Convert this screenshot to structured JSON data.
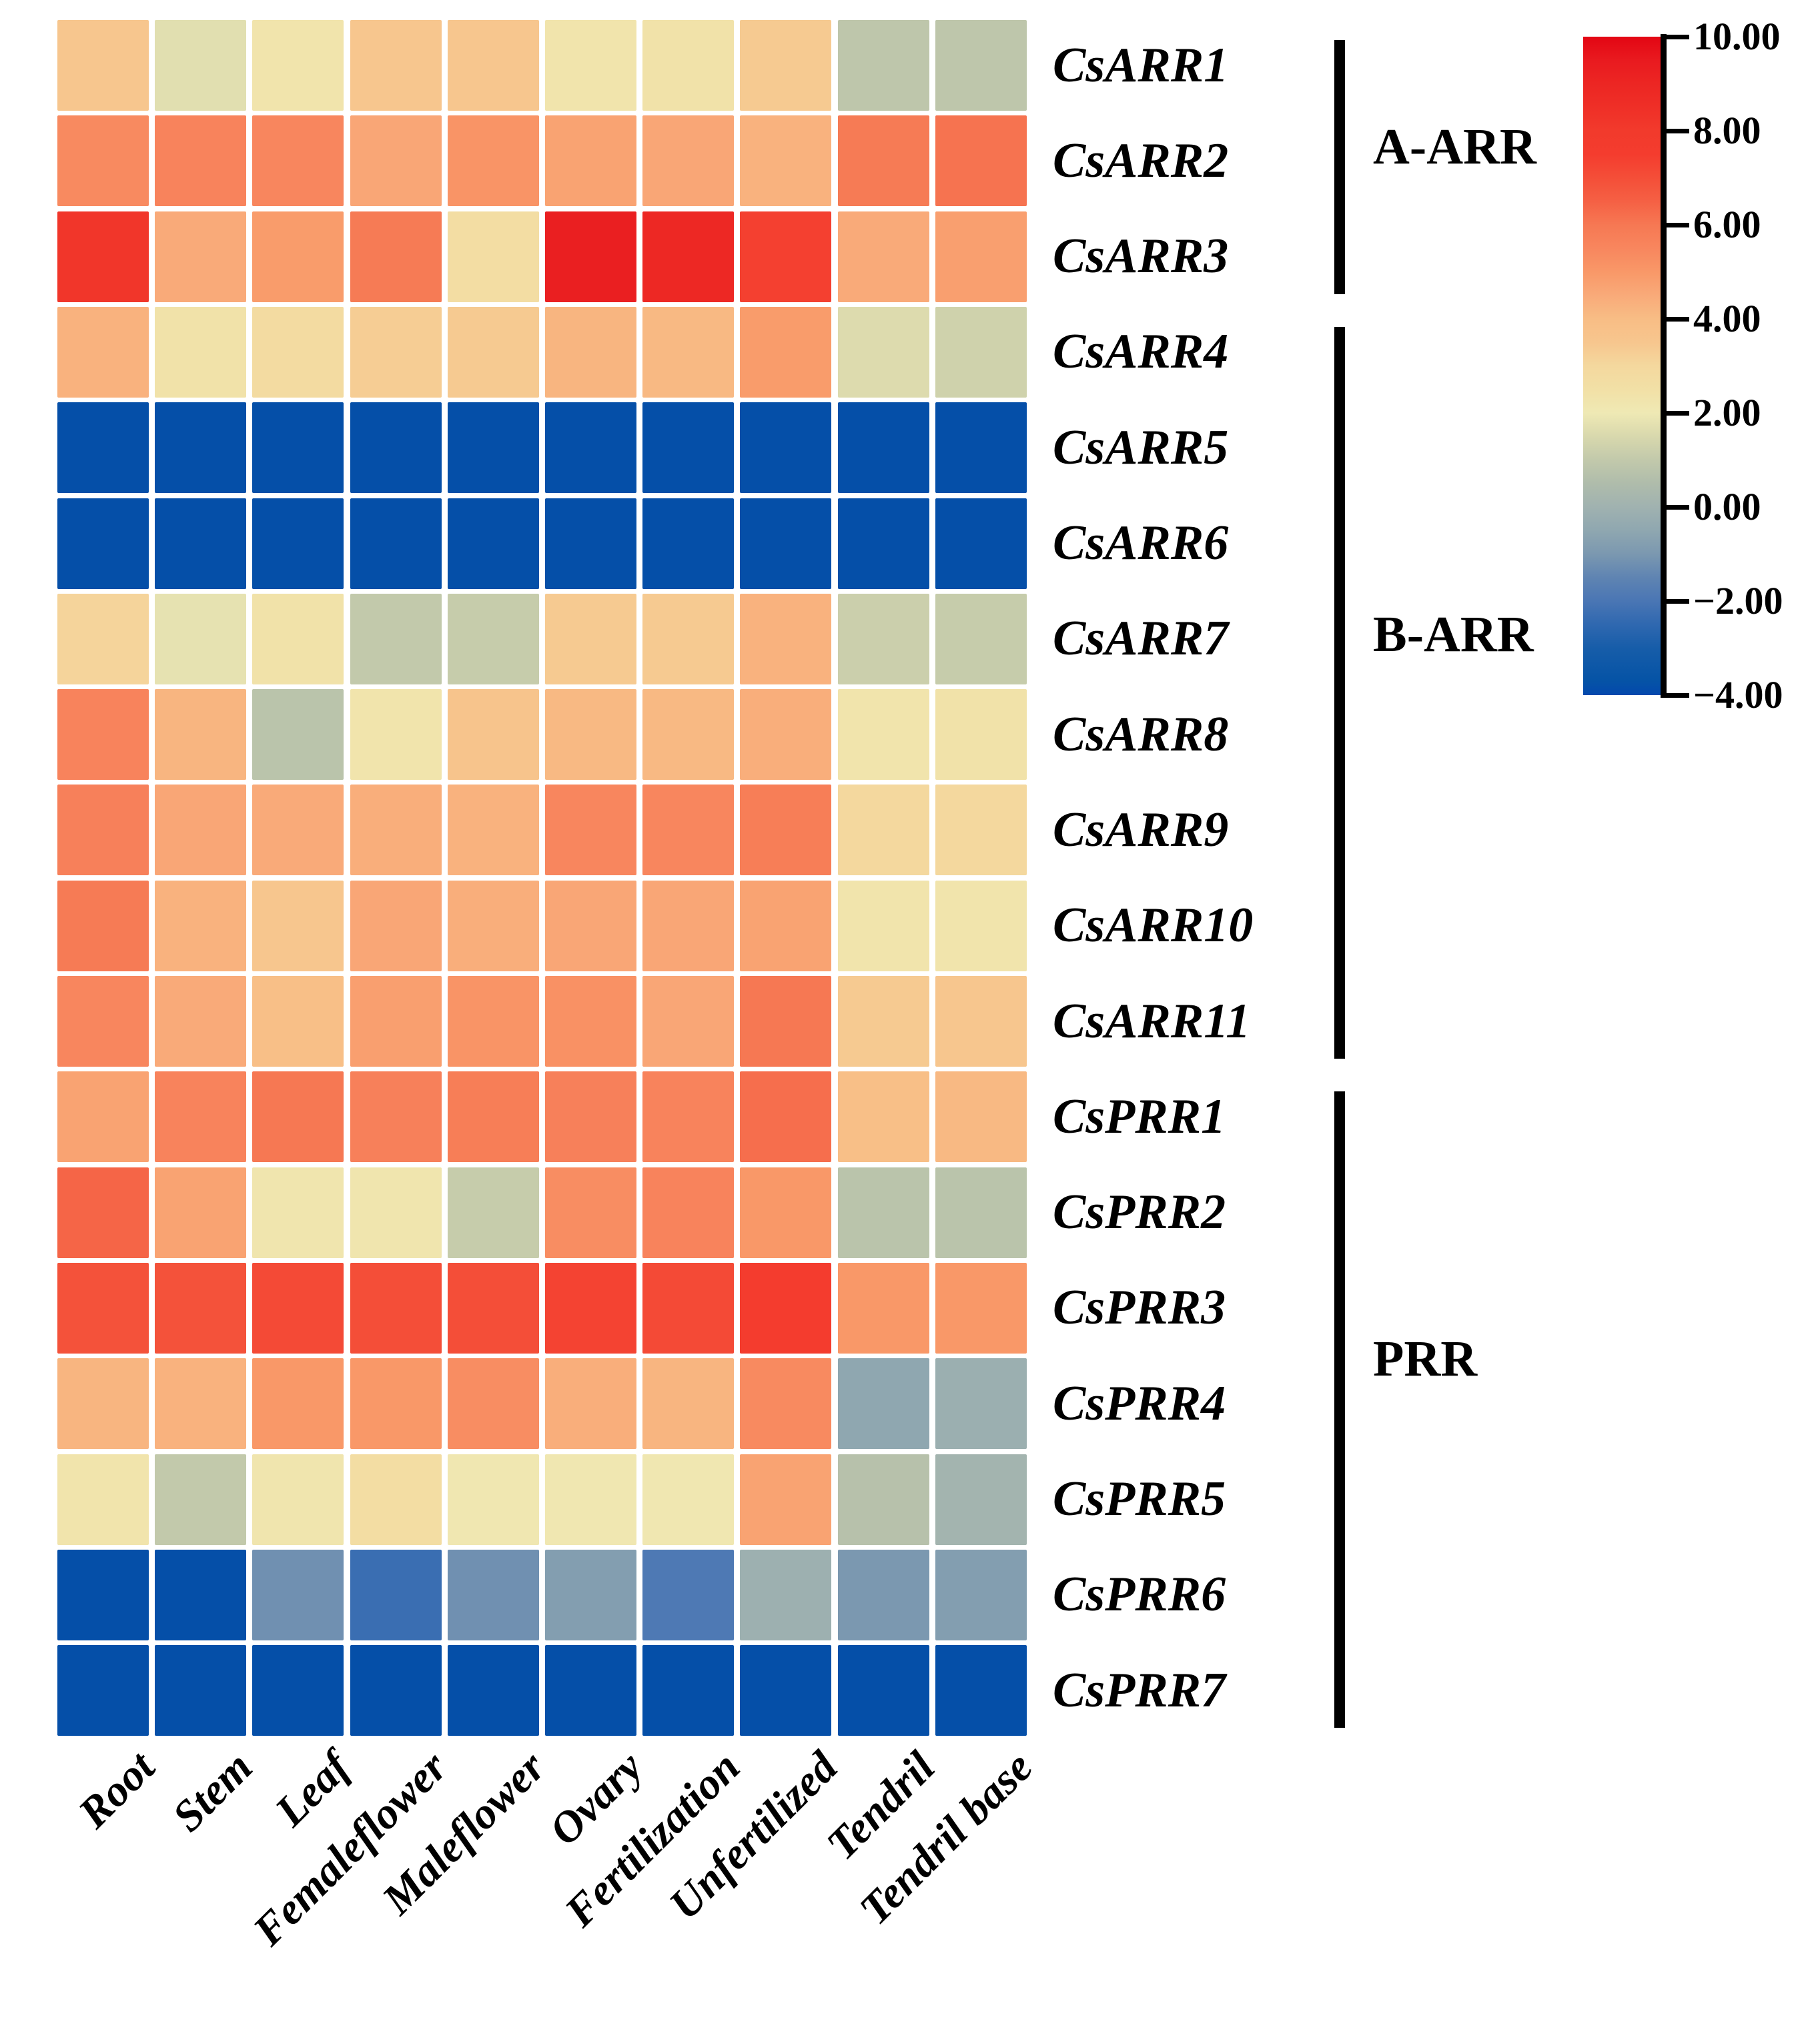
{
  "figure": {
    "background": "#ffffff",
    "description": "Expression heatmap of cucumber ARR and PRR genes across tissues"
  },
  "chart_data": {
    "type": "heatmap",
    "title": "",
    "xlabel": "",
    "ylabel": "",
    "grid": "white-gaps",
    "legend_position": "right",
    "categories": [
      "Root",
      "Stem",
      "Leaf",
      "Femaleflower",
      "Maleflower",
      "Ovary",
      "Fertilization",
      "Unfertilized",
      "Tendril",
      "Tendril base"
    ],
    "series": [
      {
        "name": "CsARR1",
        "group": "A-ARR",
        "values": [
          3.5,
          1.7,
          2.3,
          3.5,
          3.5,
          2.3,
          2.4,
          3.4,
          0.9,
          0.9
        ]
      },
      {
        "name": "CsARR2",
        "group": "A-ARR",
        "values": [
          5.4,
          5.6,
          5.5,
          4.6,
          5.1,
          4.7,
          4.6,
          4.3,
          5.9,
          6.1
        ]
      },
      {
        "name": "CsARR3",
        "group": "A-ARR",
        "values": [
          8.2,
          4.5,
          4.9,
          5.9,
          2.7,
          9.3,
          8.9,
          7.4,
          4.5,
          4.8
        ]
      },
      {
        "name": "CsARR4",
        "group": "B-ARR",
        "values": [
          4.3,
          2.4,
          2.8,
          3.3,
          3.4,
          4.2,
          4.1,
          4.9,
          1.6,
          1.3
        ]
      },
      {
        "name": "CsARR5",
        "group": "B-ARR",
        "values": [
          -3.8,
          -3.8,
          -3.8,
          -3.8,
          -3.8,
          -3.8,
          -3.8,
          -3.8,
          -3.8,
          -3.8
        ]
      },
      {
        "name": "CsARR6",
        "group": "B-ARR",
        "values": [
          -3.8,
          -3.8,
          -3.8,
          -3.8,
          -3.8,
          -3.8,
          -3.8,
          -3.8,
          -3.8,
          -3.8
        ]
      },
      {
        "name": "CsARR7",
        "group": "B-ARR",
        "values": [
          3.1,
          1.8,
          2.4,
          1.0,
          1.1,
          3.4,
          3.4,
          4.3,
          1.2,
          1.1
        ]
      },
      {
        "name": "CsARR8",
        "group": "B-ARR",
        "values": [
          5.6,
          4.2,
          0.8,
          2.3,
          3.6,
          4.1,
          4.1,
          4.4,
          2.3,
          2.4
        ]
      },
      {
        "name": "CsARR9",
        "group": "B-ARR",
        "values": [
          5.7,
          4.6,
          4.5,
          4.4,
          4.3,
          5.5,
          5.5,
          5.8,
          3.0,
          3.0
        ]
      },
      {
        "name": "CsARR10",
        "group": "B-ARR",
        "values": [
          5.9,
          4.3,
          3.5,
          4.6,
          4.4,
          4.6,
          4.6,
          4.7,
          2.3,
          2.3
        ]
      },
      {
        "name": "CsARR11",
        "group": "B-ARR",
        "values": [
          5.5,
          4.5,
          3.9,
          4.8,
          5.1,
          5.2,
          4.6,
          6.0,
          3.4,
          3.5
        ]
      },
      {
        "name": "CsPRR1",
        "group": "PRR",
        "values": [
          4.7,
          5.6,
          6.0,
          5.7,
          5.8,
          5.7,
          5.6,
          6.2,
          3.9,
          4.1
        ]
      },
      {
        "name": "CsPRR2",
        "group": "PRR",
        "values": [
          6.4,
          4.7,
          2.2,
          2.2,
          1.1,
          5.3,
          5.6,
          5.0,
          0.8,
          0.8
        ]
      },
      {
        "name": "CsPRR3",
        "group": "PRR",
        "values": [
          6.9,
          6.9,
          7.1,
          7.0,
          7.0,
          7.3,
          7.1,
          7.6,
          5.0,
          5.0
        ]
      },
      {
        "name": "CsPRR4",
        "group": "PRR",
        "values": [
          4.2,
          4.3,
          5.0,
          5.0,
          5.3,
          4.4,
          4.2,
          5.4,
          -0.5,
          -0.15
        ]
      },
      {
        "name": "CsPRR5",
        "group": "PRR",
        "values": [
          2.3,
          1.0,
          2.2,
          2.7,
          2.1,
          2.1,
          2.1,
          4.7,
          0.7,
          0.1
        ]
      },
      {
        "name": "CsPRR6",
        "group": "PRR",
        "values": [
          -3.8,
          -3.8,
          -1.2,
          -2.3,
          -1.2,
          -0.8,
          -1.9,
          -0.1,
          -1.0,
          -0.8
        ]
      },
      {
        "name": "CsPRR7",
        "group": "PRR",
        "values": [
          -3.8,
          -3.8,
          -3.8,
          -3.8,
          -3.8,
          -3.8,
          -3.8,
          -3.8,
          -3.8,
          -3.8
        ]
      }
    ],
    "groups": [
      {
        "label": "A-ARR",
        "start_row": 0,
        "end_row": 2
      },
      {
        "label": "B-ARR",
        "start_row": 3,
        "end_row": 10
      },
      {
        "label": "PRR",
        "start_row": 11,
        "end_row": 17
      }
    ],
    "value_range": [
      -4,
      10
    ],
    "colorbar": {
      "ticks": [
        "10.00",
        "8.00",
        "6.00",
        "4.00",
        "2.00",
        "0.00",
        "−2.00",
        "−4.00"
      ],
      "tick_values": [
        10,
        8,
        6,
        4,
        2,
        0,
        -2,
        -4
      ]
    },
    "colormap": {
      "domain": [
        -4,
        10
      ],
      "stops": [
        [
          -4.0,
          "#0448AD"
        ],
        [
          -3.7,
          "#0553A6"
        ],
        [
          -3.0,
          "#175DA9"
        ],
        [
          -2.5,
          "#2F68B0"
        ],
        [
          -2.0,
          "#4A76B4"
        ],
        [
          -1.5,
          "#5F84B2"
        ],
        [
          -1.0,
          "#7B98B0"
        ],
        [
          -0.5,
          "#8FA7B0"
        ],
        [
          0.0,
          "#A0B2B0"
        ],
        [
          0.5,
          "#AFBCAB"
        ],
        [
          1.0,
          "#C2C9AB"
        ],
        [
          1.5,
          "#D8D8AD"
        ],
        [
          2.0,
          "#EFE9B4"
        ],
        [
          2.5,
          "#F2E0A6"
        ],
        [
          3.0,
          "#F4D89E"
        ],
        [
          3.5,
          "#F7C68E"
        ],
        [
          4.0,
          "#F8BD85"
        ],
        [
          4.5,
          "#F9AA79"
        ],
        [
          5.0,
          "#F99868"
        ],
        [
          5.5,
          "#F8865E"
        ],
        [
          6.0,
          "#F67853"
        ],
        [
          6.5,
          "#F56044"
        ],
        [
          7.0,
          "#F44E38"
        ],
        [
          7.5,
          "#F43C2E"
        ],
        [
          8.0,
          "#F23A2C"
        ],
        [
          8.5,
          "#EF2F27"
        ],
        [
          9.0,
          "#EC2623"
        ],
        [
          9.5,
          "#E91A1F"
        ],
        [
          10.0,
          "#E30613"
        ]
      ]
    }
  }
}
